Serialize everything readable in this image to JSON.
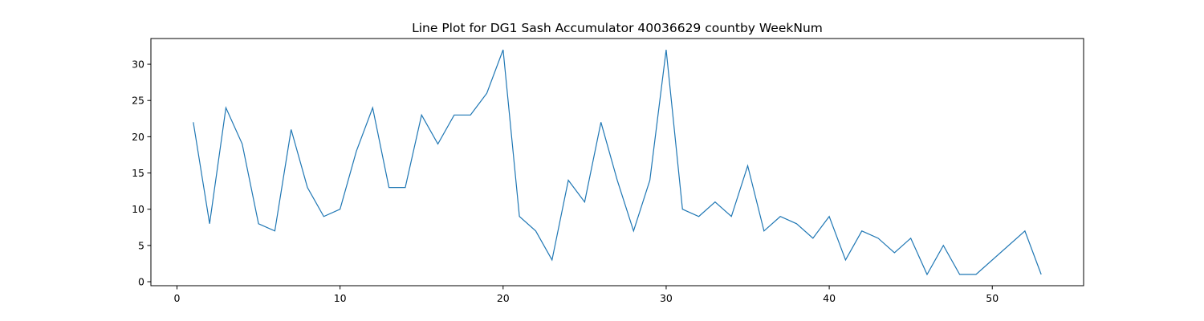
{
  "chart_data": {
    "type": "line",
    "title": "Line Plot for DG1 Sash Accumulator 40036629 countby WeekNum",
    "xlabel": "",
    "ylabel": "",
    "xlim": [
      -1.6,
      55.6
    ],
    "ylim": [
      -0.55,
      33.55
    ],
    "x_ticks": [
      0,
      10,
      20,
      30,
      40,
      50
    ],
    "y_ticks": [
      0,
      5,
      10,
      15,
      20,
      25,
      30
    ],
    "grid": false,
    "line_color": "#1f77b4",
    "series": [
      {
        "x": [
          1,
          2,
          3,
          4,
          5,
          6,
          7,
          8,
          9,
          10,
          11,
          12,
          13,
          14,
          15,
          16,
          17,
          18,
          19,
          20,
          21,
          22,
          23,
          24,
          25,
          26,
          27,
          28,
          29,
          30,
          31,
          32,
          33,
          34,
          35,
          36,
          37,
          38,
          39,
          40,
          41,
          42,
          43,
          44,
          45,
          46,
          47,
          48,
          49,
          52,
          53
        ],
        "values": [
          22,
          8,
          24,
          19,
          8,
          7,
          21,
          13,
          9,
          10,
          18,
          24,
          13,
          13,
          23,
          19,
          23,
          23,
          26,
          32,
          9,
          7,
          3,
          14,
          11,
          22,
          14,
          7,
          14,
          32,
          10,
          9,
          11,
          9,
          16,
          7,
          9,
          8,
          6,
          9,
          3,
          7,
          6,
          4,
          6,
          1,
          5,
          1,
          1,
          7,
          1
        ]
      }
    ]
  }
}
